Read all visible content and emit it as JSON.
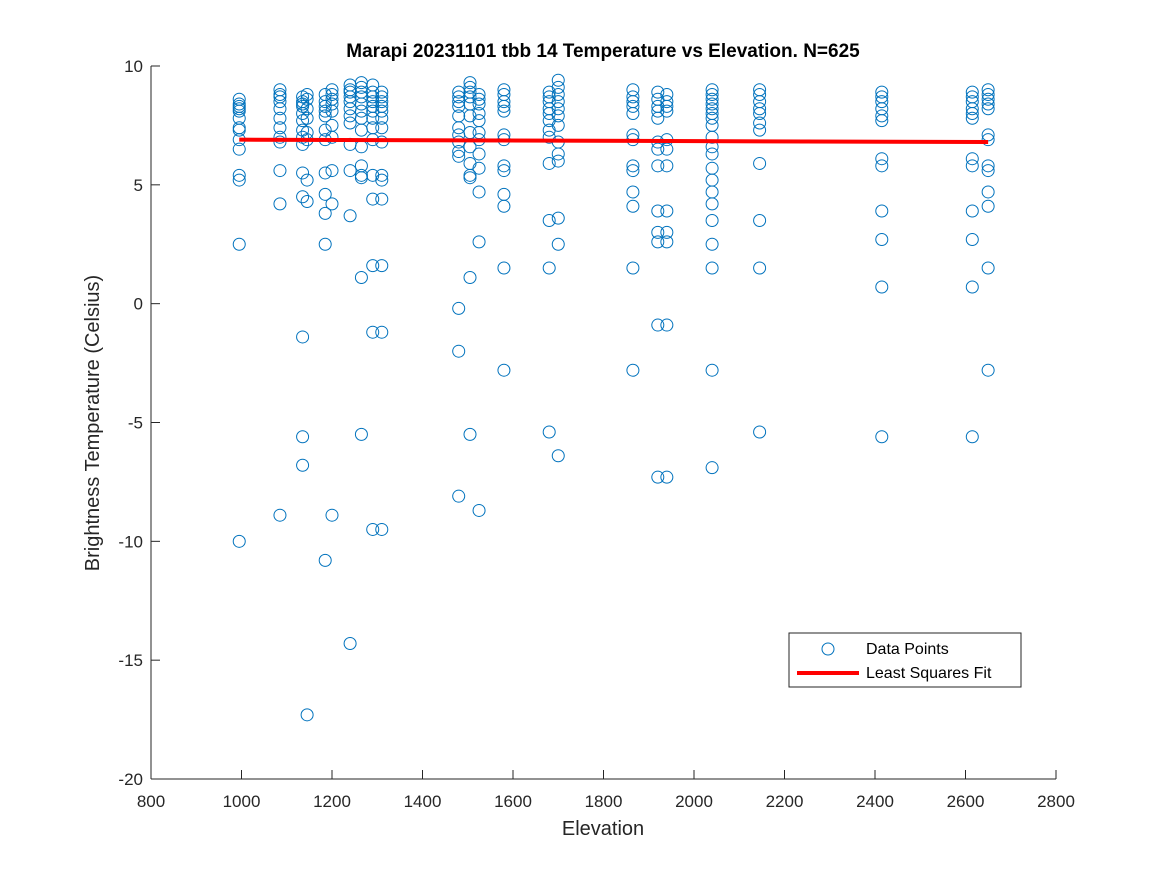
{
  "chart_data": {
    "type": "scatter",
    "title": "Marapi 20231101 tbb 14 Temperature vs Elevation. N=625",
    "xlabel": "Elevation",
    "ylabel": "Brightness Temperature (Celsius)",
    "xlim": [
      800,
      2800
    ],
    "ylim": [
      -20,
      10
    ],
    "xticks": [
      800,
      1000,
      1200,
      1400,
      1600,
      1800,
      2000,
      2200,
      2400,
      2600,
      2800
    ],
    "yticks": [
      -20,
      -15,
      -10,
      -5,
      0,
      5,
      10
    ],
    "grid": false,
    "legend_placement": "lower-right",
    "colors": {
      "points": "#0072BD",
      "fit": "#FF0000",
      "axis": "#262626"
    },
    "series": [
      {
        "name": "Data Points",
        "marker": "circle-open",
        "groups": [
          {
            "x": 995,
            "y": [
              8.6,
              8.4,
              8.3,
              8.2,
              8.1,
              7.8,
              7.4,
              7.3,
              6.9,
              6.5,
              5.4,
              5.2,
              2.5,
              -10.0
            ]
          },
          {
            "x": 1085,
            "y": [
              9.0,
              8.8,
              8.7,
              8.5,
              8.2,
              7.8,
              7.4,
              7.0,
              6.8,
              5.6,
              4.2,
              -8.9
            ]
          },
          {
            "x": 1135,
            "y": [
              8.7,
              8.5,
              8.4,
              8.3,
              8.0,
              7.7,
              7.3,
              7.0,
              6.7,
              5.5,
              4.5,
              -1.4,
              -5.6,
              -6.8
            ]
          },
          {
            "x": 1145,
            "y": [
              8.8,
              8.6,
              8.2,
              7.8,
              7.2,
              6.9,
              5.2,
              4.3,
              -17.3
            ]
          },
          {
            "x": 1185,
            "y": [
              8.8,
              8.5,
              8.3,
              8.1,
              7.9,
              7.3,
              6.9,
              5.5,
              4.6,
              3.8,
              2.5,
              -10.8
            ]
          },
          {
            "x": 1200,
            "y": [
              9.0,
              8.8,
              8.6,
              8.4,
              8.1,
              7.5,
              7.0,
              5.6,
              4.2,
              -8.9
            ]
          },
          {
            "x": 1240,
            "y": [
              9.2,
              9.0,
              8.9,
              8.7,
              8.5,
              8.2,
              7.9,
              7.6,
              6.7,
              5.6,
              3.7,
              -14.3
            ]
          },
          {
            "x": 1265,
            "y": [
              9.3,
              9.1,
              8.9,
              8.7,
              8.4,
              8.1,
              7.8,
              7.3,
              6.6,
              5.8,
              5.4,
              5.3,
              1.1,
              -5.5
            ]
          },
          {
            "x": 1290,
            "y": [
              9.2,
              8.9,
              8.7,
              8.5,
              8.3,
              8.1,
              7.8,
              7.4,
              6.9,
              5.4,
              4.4,
              1.6,
              -1.2,
              -9.5
            ]
          },
          {
            "x": 1310,
            "y": [
              8.9,
              8.7,
              8.5,
              8.3,
              8.1,
              7.8,
              7.4,
              6.8,
              5.4,
              5.2,
              4.4,
              1.6,
              -1.2,
              -9.5
            ]
          },
          {
            "x": 1480,
            "y": [
              8.9,
              8.7,
              8.5,
              8.3,
              7.9,
              7.4,
              7.1,
              6.8,
              6.4,
              6.2,
              -0.2,
              -2.0,
              -8.1
            ]
          },
          {
            "x": 1505,
            "y": [
              9.3,
              9.1,
              8.9,
              8.7,
              8.4,
              7.9,
              7.2,
              6.6,
              5.9,
              5.4,
              5.3,
              1.1,
              -5.5
            ]
          },
          {
            "x": 1525,
            "y": [
              8.8,
              8.6,
              8.4,
              8.0,
              7.7,
              7.2,
              6.9,
              6.3,
              5.7,
              4.7,
              2.6,
              -8.7
            ]
          },
          {
            "x": 1580,
            "y": [
              9.0,
              8.8,
              8.5,
              8.3,
              8.1,
              7.1,
              6.9,
              5.8,
              5.6,
              4.6,
              4.1,
              1.5,
              -2.8
            ]
          },
          {
            "x": 1680,
            "y": [
              8.9,
              8.7,
              8.5,
              8.2,
              8.0,
              7.7,
              7.3,
              7.0,
              5.9,
              3.5,
              1.5,
              -5.4
            ]
          },
          {
            "x": 1700,
            "y": [
              9.4,
              9.1,
              8.8,
              8.5,
              8.2,
              7.9,
              7.5,
              6.8,
              6.3,
              6.0,
              3.6,
              2.5,
              -6.4
            ]
          },
          {
            "x": 1865,
            "y": [
              9.0,
              8.7,
              8.5,
              8.3,
              8.0,
              7.1,
              6.9,
              5.8,
              5.6,
              4.7,
              4.1,
              1.5,
              -2.8
            ]
          },
          {
            "x": 1920,
            "y": [
              8.9,
              8.6,
              8.3,
              8.1,
              7.8,
              6.8,
              6.5,
              5.8,
              3.9,
              3.0,
              2.6,
              -0.9,
              -7.3
            ]
          },
          {
            "x": 1940,
            "y": [
              8.8,
              8.5,
              8.3,
              8.1,
              6.9,
              6.5,
              5.8,
              3.9,
              3.0,
              2.6,
              -0.9,
              -7.3
            ]
          },
          {
            "x": 2040,
            "y": [
              9.0,
              8.8,
              8.6,
              8.4,
              8.2,
              8.0,
              7.8,
              7.5,
              7.0,
              6.6,
              6.3,
              5.7,
              5.2,
              4.7,
              4.2,
              3.5,
              2.5,
              1.5,
              -2.8,
              -6.9
            ]
          },
          {
            "x": 2145,
            "y": [
              9.0,
              8.8,
              8.5,
              8.2,
              8.0,
              7.6,
              7.3,
              5.9,
              3.5,
              1.5,
              -5.4
            ]
          },
          {
            "x": 2415,
            "y": [
              8.9,
              8.7,
              8.5,
              8.2,
              7.9,
              7.7,
              6.1,
              5.8,
              3.9,
              2.7,
              0.7,
              -5.6
            ]
          },
          {
            "x": 2615,
            "y": [
              8.9,
              8.7,
              8.5,
              8.2,
              8.0,
              7.8,
              6.1,
              5.8,
              3.9,
              2.7,
              0.7,
              -5.6
            ]
          },
          {
            "x": 2650,
            "y": [
              9.0,
              8.8,
              8.6,
              8.4,
              8.2,
              7.1,
              6.9,
              5.8,
              5.6,
              4.7,
              4.1,
              1.5,
              -2.8
            ]
          }
        ]
      },
      {
        "name": "Least Squares Fit",
        "type": "line",
        "x": [
          995,
          2650
        ],
        "y": [
          6.9,
          6.8
        ]
      }
    ]
  }
}
